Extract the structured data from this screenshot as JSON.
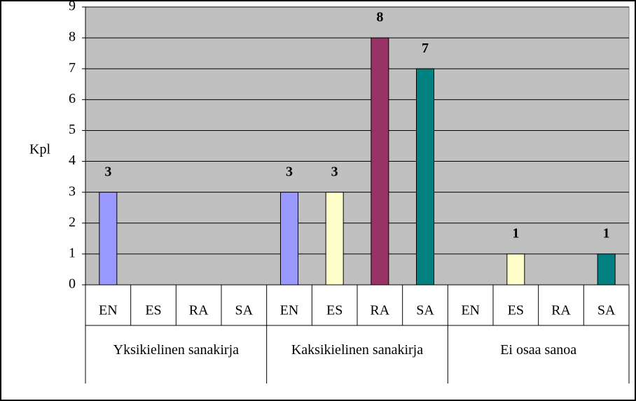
{
  "chart_data": {
    "type": "grouped-bar",
    "ylabel": "Kpl",
    "groups": [
      "Yksikielinen sanakirja",
      "Kaksikielinen sanakirja",
      "Ei osaa sanoa"
    ],
    "subcategories": [
      "EN",
      "ES",
      "RA",
      "SA"
    ],
    "colors": [
      "#9999ff",
      "#ffffcc",
      "#993366",
      "#008080"
    ],
    "values": [
      [
        3,
        null,
        null,
        null
      ],
      [
        3,
        3,
        8,
        7
      ],
      [
        null,
        1,
        null,
        1
      ]
    ],
    "ylim": [
      0,
      9
    ],
    "yticks": [
      0,
      1,
      2,
      3,
      4,
      5,
      6,
      7,
      8,
      9
    ],
    "grid": true,
    "background": "#c0c0c0"
  }
}
